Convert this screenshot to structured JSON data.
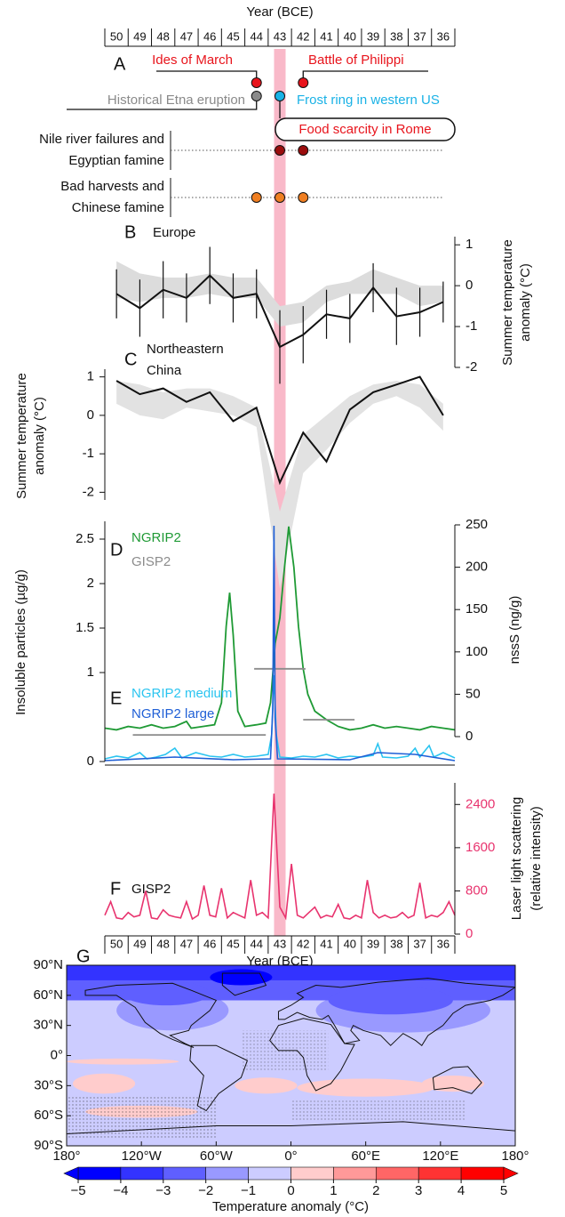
{
  "chart_data": [
    {
      "type": "timeline",
      "panel": "A",
      "title": "Year (BCE)",
      "categories": [
        "50",
        "49",
        "48",
        "47",
        "46",
        "45",
        "44",
        "43",
        "42",
        "41",
        "40",
        "39",
        "38",
        "37",
        "36"
      ],
      "xlim": [
        50.5,
        35.5
      ],
      "highlight_x": 43,
      "highlight_color": "#f9b9c9",
      "events": [
        {
          "label": "Ides of March",
          "x": 44,
          "color": "#e8141c"
        },
        {
          "label": "Battle of Philippi",
          "x": 42,
          "color": "#e8141c"
        },
        {
          "label": "Historical Etna eruption",
          "x": 44,
          "color": "#8a8a8a"
        },
        {
          "label": "Frost ring in western US",
          "x": 43,
          "color": "#1ab2e6"
        },
        {
          "label": "Food scarcity in Rome",
          "x": 43,
          "color": "#e8141c"
        }
      ],
      "famines": [
        {
          "label": [
            "Nile river failures and",
            "Egyptian famine"
          ],
          "x": [
            43,
            42
          ],
          "color": "#9b0d0d"
        },
        {
          "label": [
            "Bad harvests and",
            "Chinese famine"
          ],
          "x": [
            44,
            43,
            42
          ],
          "color": "#f07f22"
        }
      ]
    },
    {
      "type": "line",
      "panel": "B",
      "subtitle": [
        "Europe"
      ],
      "ylabel": [
        "Summer temperature",
        "anomaly (°C)"
      ],
      "xlim": [
        50.5,
        35.5
      ],
      "x": [
        50,
        49,
        48,
        47,
        46,
        45,
        44,
        43,
        42,
        41,
        40,
        39,
        38,
        37,
        36
      ],
      "values": [
        -0.2,
        -0.55,
        -0.1,
        -0.3,
        0.25,
        -0.3,
        -0.2,
        -1.5,
        -1.2,
        -0.7,
        -0.8,
        -0.05,
        -0.75,
        -0.65,
        -0.4
      ],
      "errors": [
        0.6,
        0.7,
        0.7,
        0.6,
        0.7,
        0.6,
        0.6,
        0.9,
        0.7,
        0.6,
        0.6,
        0.6,
        0.7,
        0.6,
        0.5
      ],
      "color": "#111111",
      "band": {
        "lower": [
          -0.3,
          -0.4,
          -0.3,
          -0.3,
          -0.2,
          -0.3,
          -0.3,
          -1.0,
          -0.9,
          -0.4,
          -0.2,
          -0.2,
          -0.2,
          -0.5,
          -0.4
        ],
        "upper": [
          0.6,
          0.3,
          0.2,
          0.2,
          0.3,
          0.2,
          0.2,
          -0.5,
          -0.4,
          0.0,
          0.1,
          0.4,
          0.2,
          0.0,
          0.0
        ],
        "color": "#dcdcdc"
      },
      "ylim": [
        -2,
        1.2
      ],
      "yticks": [
        -2,
        -1,
        0,
        1
      ]
    },
    {
      "type": "line",
      "panel": "C",
      "subtitle": [
        "Northeastern",
        "China"
      ],
      "ylabel": [
        "Summer temperature",
        "anomaly (°C)"
      ],
      "xlim": [
        50.5,
        35.5
      ],
      "x": [
        50,
        49,
        48,
        47,
        46,
        45,
        44,
        43,
        42,
        41,
        40,
        39,
        38,
        37,
        36
      ],
      "values": [
        0.9,
        0.55,
        0.7,
        0.35,
        0.6,
        -0.15,
        0.2,
        -1.75,
        -0.45,
        -1.2,
        0.15,
        0.6,
        0.8,
        1.0,
        0.0
      ],
      "color": "#111111",
      "band": {
        "lower": [
          0.3,
          0.0,
          -0.1,
          0.2,
          0.1,
          0.0,
          -0.3,
          -4.5,
          -1.5,
          -0.9,
          -0.2,
          0.3,
          0.5,
          0.2,
          -0.4
        ],
        "upper": [
          0.9,
          0.8,
          0.6,
          0.7,
          0.7,
          0.5,
          0.2,
          -2.5,
          -0.5,
          0.0,
          0.5,
          0.8,
          0.9,
          0.8,
          0.3
        ],
        "color": "#e2e2e2"
      },
      "ylim": [
        -2.2,
        1.2
      ],
      "yticks": [
        -2,
        -1,
        0,
        1
      ]
    },
    {
      "type": "line",
      "panel": [
        "D",
        "E"
      ],
      "ylabel": "Insoluble particles (µg/g)",
      "y2label": "nssS (ng/g)",
      "xlim": [
        50.5,
        35.5
      ],
      "ylim": [
        0,
        2.7
      ],
      "yticks": [
        0,
        1,
        1.5,
        2,
        2.5
      ],
      "y2lim": [
        0,
        250
      ],
      "y2ticks": [
        0,
        50,
        100,
        150,
        200,
        250
      ],
      "series": [
        {
          "name": "NGRIP2",
          "color": "#1f9a35",
          "axis": "y2",
          "x": [
            50.5,
            50,
            49.5,
            49,
            48.5,
            48,
            47.5,
            47,
            46.8,
            46.3,
            45.8,
            45.5,
            45.3,
            45.15,
            45.0,
            44.8,
            44.5,
            44,
            43.6,
            43.4,
            43.2,
            43.0,
            42.8,
            42.62,
            42.4,
            42.2,
            42.0,
            41.8,
            41.5,
            41,
            40.5,
            40,
            39.5,
            39,
            38.5,
            38,
            37.5,
            37,
            36.5,
            36,
            35.5
          ],
          "values": [
            10,
            8,
            12,
            10,
            14,
            10,
            12,
            18,
            10,
            12,
            14,
            40,
            130,
            170,
            120,
            30,
            12,
            14,
            16,
            40,
            110,
            140,
            200,
            248,
            200,
            130,
            80,
            50,
            30,
            20,
            12,
            8,
            10,
            14,
            10,
            12,
            10,
            8,
            12,
            10,
            8
          ]
        },
        {
          "name": "GISP2",
          "color": "#8c8c8c",
          "axis": "y2",
          "x": [
            49.3,
            43.6,
            43.6,
            44.1,
            41.9,
            41.9,
            42.0,
            39.8
          ],
          "values": [
            2,
            2,
            null,
            80,
            80,
            null,
            20,
            20
          ]
        },
        {
          "name": "NGRIP2 medium",
          "color": "#2ac4f0",
          "x": [
            50.5,
            50,
            49.5,
            49,
            48.7,
            48.3,
            47.9,
            47.5,
            47.2,
            46.6,
            46,
            45.5,
            45,
            44.5,
            44,
            43.5,
            43.35,
            43.25,
            43.15,
            43.0,
            42.5,
            42,
            41.5,
            41,
            40.5,
            40,
            39.5,
            39,
            38.8,
            38.6,
            38,
            37.5,
            37.2,
            37,
            36.6,
            36.4,
            36,
            35.5
          ],
          "values": [
            0.03,
            0.06,
            0.04,
            0.1,
            0.03,
            0.05,
            0.08,
            0.15,
            0.04,
            0.1,
            0.06,
            0.05,
            0.08,
            0.05,
            0.06,
            0.08,
            0.3,
            0.97,
            0.3,
            0.05,
            0.04,
            0.06,
            0.05,
            0.08,
            0.04,
            0.06,
            0.05,
            0.07,
            0.2,
            0.05,
            0.04,
            0.06,
            0.15,
            0.05,
            0.18,
            0.05,
            0.1,
            0.04
          ]
        },
        {
          "name": "NGRIP2 large",
          "color": "#1f5fd6",
          "x": [
            50.5,
            47.5,
            45,
            43.4,
            43.3,
            43.25,
            43.2,
            43.1,
            40,
            38.8,
            37.2,
            35.5
          ],
          "values": [
            0.01,
            0.05,
            0.02,
            0.03,
            0.6,
            2.65,
            0.5,
            0.03,
            0.02,
            0.1,
            0.08,
            0.01
          ]
        }
      ]
    },
    {
      "type": "line",
      "panel": "F",
      "ylabel": [
        "Laser light scattering",
        "(relative intensity)"
      ],
      "xlabel": "Year (BCE)",
      "categories": [
        "50",
        "49",
        "48",
        "47",
        "46",
        "45",
        "44",
        "43",
        "42",
        "41",
        "40",
        "39",
        "38",
        "37",
        "36"
      ],
      "xlim": [
        50.5,
        35.5
      ],
      "ylim": [
        0,
        2800
      ],
      "yticks": [
        0,
        800,
        1600,
        2400
      ],
      "tick_color": "#e8336e",
      "series": [
        {
          "name": "GISP2",
          "color": "#e8336e",
          "x": [
            50.5,
            50.25,
            50,
            49.75,
            49.5,
            49.25,
            49,
            48.75,
            48.5,
            48.25,
            48,
            47.75,
            47.5,
            47.25,
            47,
            46.75,
            46.5,
            46.25,
            46,
            45.75,
            45.5,
            45.25,
            45,
            44.75,
            44.5,
            44.25,
            44,
            43.75,
            43.5,
            43.25,
            43,
            42.75,
            42.5,
            42.25,
            42,
            41.75,
            41.5,
            41.25,
            41,
            40.75,
            40.5,
            40.25,
            40,
            39.75,
            39.5,
            39.25,
            39,
            38.75,
            38.5,
            38.25,
            38,
            37.75,
            37.5,
            37.25,
            37,
            36.75,
            36.5,
            36.25,
            36,
            35.75,
            35.5
          ],
          "values": [
            350,
            600,
            300,
            280,
            400,
            320,
            350,
            800,
            300,
            280,
            450,
            350,
            320,
            300,
            600,
            280,
            350,
            900,
            350,
            320,
            850,
            300,
            400,
            350,
            300,
            1000,
            350,
            400,
            300,
            2600,
            500,
            300,
            1300,
            350,
            300,
            400,
            500,
            300,
            350,
            320,
            550,
            300,
            280,
            350,
            300,
            1000,
            400,
            300,
            350,
            300,
            320,
            400,
            300,
            350,
            950,
            300,
            350,
            320,
            400,
            600,
            350
          ]
        }
      ]
    },
    {
      "type": "map",
      "panel": "G",
      "xlim": [
        -180,
        180
      ],
      "ylim": [
        -90,
        90
      ],
      "xticks": [
        {
          "value": -180,
          "label": "180°"
        },
        {
          "value": -120,
          "label": "120°W"
        },
        {
          "value": -60,
          "label": "60°W"
        },
        {
          "value": 0,
          "label": "0°"
        },
        {
          "value": 60,
          "label": "60°E"
        },
        {
          "value": 120,
          "label": "120°E"
        },
        {
          "value": 180,
          "label": "180°"
        }
      ],
      "yticks": [
        {
          "value": 90,
          "label": "90°N"
        },
        {
          "value": 60,
          "label": "60°N"
        },
        {
          "value": 30,
          "label": "30°N"
        },
        {
          "value": 0,
          "label": "0°"
        },
        {
          "value": -30,
          "label": "30°S"
        },
        {
          "value": -60,
          "label": "60°S"
        },
        {
          "value": -90,
          "label": "90°S"
        }
      ],
      "colorbar": {
        "title": "Temperature anomaly (°C)",
        "ticks": [
          {
            "value": -5,
            "label": "−5"
          },
          {
            "value": -4,
            "label": "−4"
          },
          {
            "value": -3,
            "label": "−3"
          },
          {
            "value": -2,
            "label": "−2"
          },
          {
            "value": -1,
            "label": "−1"
          },
          0,
          1,
          2,
          3,
          4,
          5
        ],
        "colors": [
          "#0000ff",
          "#3333ff",
          "#5f5fff",
          "#9999ff",
          "#ccccff",
          "#ffcccc",
          "#ff9999",
          "#ff6666",
          "#ff3333",
          "#ff0000"
        ]
      }
    }
  ]
}
